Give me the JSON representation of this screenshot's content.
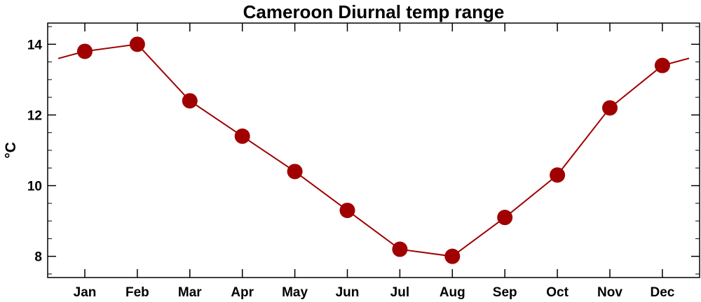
{
  "chart_data": {
    "type": "line",
    "title": "Cameroon Diurnal temp range",
    "xlabel": "",
    "ylabel": "°C",
    "categories": [
      "Jan",
      "Feb",
      "Mar",
      "Apr",
      "May",
      "Jun",
      "Jul",
      "Aug",
      "Sep",
      "Oct",
      "Nov",
      "Dec"
    ],
    "values": [
      13.8,
      14.0,
      12.4,
      11.4,
      10.4,
      9.3,
      8.2,
      8.0,
      9.1,
      10.3,
      12.2,
      13.4
    ],
    "ylim": [
      7.4,
      14.6
    ],
    "yticks": [
      8,
      10,
      12,
      14
    ],
    "wraparound": true,
    "grid": false,
    "colors": {
      "line": "#a00000",
      "marker": "#a00000",
      "axis": "#000000"
    }
  }
}
